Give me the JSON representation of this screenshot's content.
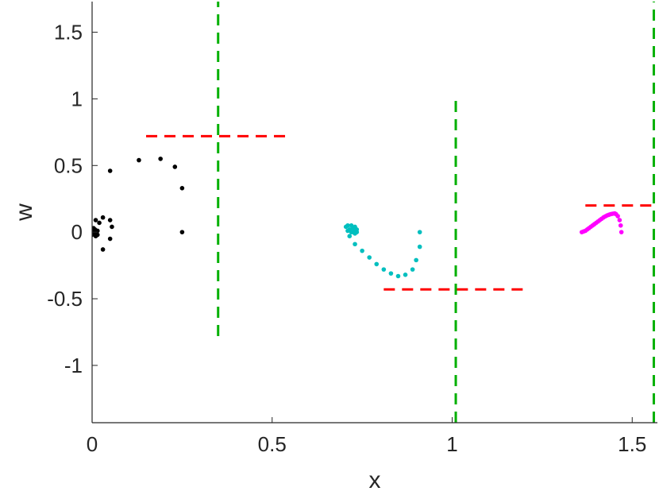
{
  "chart_data": {
    "type": "scatter",
    "title": "",
    "xlabel": "x",
    "ylabel": "w",
    "xlim": [
      0,
      1.57
    ],
    "ylim": [
      -1.43,
      1.73
    ],
    "grid": false,
    "legend": "none",
    "xticks": [
      0,
      0.5,
      1,
      1.5
    ],
    "xtick_labels": [
      "0",
      "0.5",
      "1",
      "1.5"
    ],
    "yticks": [
      -1,
      -0.5,
      0,
      0.5,
      1,
      1.5
    ],
    "ytick_labels": [
      "-1",
      "-0.5",
      "0",
      "0.5",
      "1",
      "1.5"
    ],
    "series": [
      {
        "color": "#000000",
        "marker": "dot",
        "points": [
          [
            0.25,
            0.0
          ],
          [
            0.25,
            0.33
          ],
          [
            0.23,
            0.49
          ],
          [
            0.19,
            0.55
          ],
          [
            0.13,
            0.54
          ],
          [
            0.05,
            0.46
          ],
          [
            0.01,
            0.09
          ],
          [
            0.03,
            0.11
          ],
          [
            0.05,
            0.09
          ],
          [
            0.055,
            0.04
          ],
          [
            0.05,
            -0.05
          ],
          [
            0.03,
            -0.13
          ],
          [
            0.02,
            0.07
          ],
          [
            0.015,
            -0.02
          ],
          [
            0.0,
            0.0
          ],
          [
            0.005,
            0.01
          ],
          [
            0.01,
            0.0
          ],
          [
            0.005,
            -0.01
          ],
          [
            0.008,
            0.02
          ],
          [
            0.012,
            -0.015
          ],
          [
            0.004,
            0.03
          ],
          [
            0.0,
            -0.02
          ],
          [
            0.015,
            0.01
          ],
          [
            0.01,
            -0.03
          ]
        ]
      },
      {
        "color": "#00bfbf",
        "marker": "dot",
        "points": [
          [
            0.91,
            0.0
          ],
          [
            0.91,
            -0.11
          ],
          [
            0.9,
            -0.21
          ],
          [
            0.89,
            -0.28
          ],
          [
            0.87,
            -0.32
          ],
          [
            0.85,
            -0.33
          ],
          [
            0.83,
            -0.31
          ],
          [
            0.81,
            -0.28
          ],
          [
            0.79,
            -0.24
          ],
          [
            0.77,
            -0.19
          ],
          [
            0.75,
            -0.14
          ],
          [
            0.73,
            -0.09
          ],
          [
            0.715,
            -0.03
          ],
          [
            0.71,
            0.01
          ],
          [
            0.705,
            0.04
          ],
          [
            0.71,
            0.05
          ],
          [
            0.72,
            0.05
          ],
          [
            0.73,
            0.04
          ],
          [
            0.735,
            0.02
          ],
          [
            0.735,
            0.0
          ],
          [
            0.73,
            -0.01
          ],
          [
            0.72,
            0.0
          ],
          [
            0.715,
            0.02
          ],
          [
            0.725,
            0.03
          ],
          [
            0.73,
            0.01
          ],
          [
            0.725,
            0.0
          ]
        ]
      },
      {
        "color": "#ff00ff",
        "marker": "dot",
        "points": [
          [
            1.36,
            0.0
          ],
          [
            1.37,
            0.01
          ],
          [
            1.38,
            0.03
          ],
          [
            1.39,
            0.05
          ],
          [
            1.4,
            0.07
          ],
          [
            1.41,
            0.09
          ],
          [
            1.42,
            0.11
          ],
          [
            1.43,
            0.125
          ],
          [
            1.44,
            0.135
          ],
          [
            1.45,
            0.14
          ],
          [
            1.455,
            0.135
          ],
          [
            1.46,
            0.12
          ],
          [
            1.465,
            0.09
          ],
          [
            1.468,
            0.05
          ],
          [
            1.47,
            0.0
          ],
          [
            1.365,
            0.005
          ],
          [
            1.375,
            0.02
          ],
          [
            1.385,
            0.04
          ],
          [
            1.395,
            0.06
          ],
          [
            1.405,
            0.08
          ],
          [
            1.415,
            0.1
          ],
          [
            1.425,
            0.118
          ],
          [
            1.435,
            0.13
          ],
          [
            1.445,
            0.138
          ],
          [
            1.452,
            0.14
          ]
        ]
      }
    ],
    "dashed_lines": [
      {
        "color": "#ff0000",
        "orientation": "horizontal",
        "y": 0.72,
        "x_from": 0.15,
        "x_to": 0.55
      },
      {
        "color": "#ff0000",
        "orientation": "horizontal",
        "y": -0.43,
        "x_from": 0.81,
        "x_to": 1.21
      },
      {
        "color": "#ff0000",
        "orientation": "horizontal",
        "y": 0.2,
        "x_from": 1.37,
        "x_to": 1.57
      },
      {
        "color": "#00b000",
        "orientation": "vertical",
        "x": 0.35,
        "y_from": -0.78,
        "y_to": 1.73
      },
      {
        "color": "#00b000",
        "orientation": "vertical",
        "x": 1.01,
        "y_from": -1.43,
        "y_to": 1.03
      },
      {
        "color": "#00b000",
        "orientation": "vertical",
        "x": 1.56,
        "y_from": -1.43,
        "y_to": 1.73
      }
    ]
  }
}
